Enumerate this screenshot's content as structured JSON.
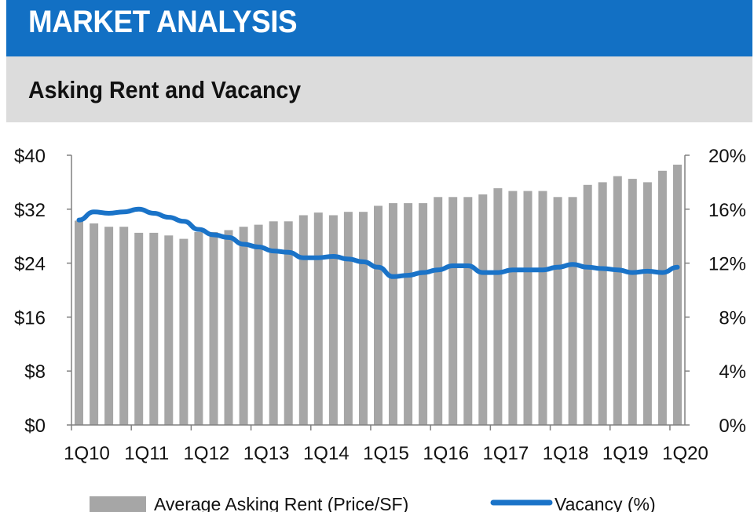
{
  "header": {
    "title": "MARKET ANALYSIS"
  },
  "subheader": {
    "title": "Asking Rent and Vacancy"
  },
  "colors": {
    "header_bg": "#1270c4",
    "subheader_bg": "#dcdcdc",
    "bar": "#a6a6a6",
    "line": "#1a73c8"
  },
  "chart_data": {
    "type": "bar",
    "title": "Asking Rent and Vacancy",
    "categories": [
      "1Q10",
      "2Q10",
      "3Q10",
      "4Q10",
      "1Q11",
      "2Q11",
      "3Q11",
      "4Q11",
      "1Q12",
      "2Q12",
      "3Q12",
      "4Q12",
      "1Q13",
      "2Q13",
      "3Q13",
      "4Q13",
      "1Q14",
      "2Q14",
      "3Q14",
      "4Q14",
      "1Q15",
      "2Q15",
      "3Q15",
      "4Q15",
      "1Q16",
      "2Q16",
      "3Q16",
      "4Q16",
      "1Q17",
      "2Q17",
      "3Q17",
      "4Q17",
      "1Q18",
      "2Q18",
      "3Q18",
      "4Q18",
      "1Q19",
      "2Q19",
      "3Q19",
      "4Q19",
      "1Q20"
    ],
    "x_tick_labels": [
      "1Q10",
      "1Q11",
      "1Q12",
      "1Q13",
      "1Q14",
      "1Q15",
      "1Q16",
      "1Q17",
      "1Q18",
      "1Q19",
      "1Q20"
    ],
    "y_left": {
      "range": [
        0,
        40
      ],
      "ticks": [
        "$0",
        "$8",
        "$16",
        "$24",
        "$32",
        "$40"
      ]
    },
    "y_right": {
      "range": [
        0,
        20
      ],
      "ticks": [
        "0%",
        "4%",
        "8%",
        "12%",
        "16%",
        "20%"
      ]
    },
    "series": [
      {
        "name": "Average Asking Rent (Price/SF)",
        "type": "bar",
        "axis": "left",
        "values": [
          30.3,
          29.9,
          29.4,
          29.4,
          28.5,
          28.5,
          28.1,
          27.6,
          28.6,
          28.6,
          28.9,
          29.4,
          29.7,
          30.2,
          30.2,
          31.1,
          31.5,
          31.1,
          31.6,
          31.6,
          32.5,
          32.9,
          32.9,
          32.9,
          33.8,
          33.8,
          33.8,
          34.2,
          35.1,
          34.7,
          34.7,
          34.7,
          33.8,
          33.8,
          35.6,
          36.0,
          36.9,
          36.5,
          36.0,
          37.7,
          38.6
        ]
      },
      {
        "name": "Vacancy (%)",
        "type": "line",
        "axis": "right",
        "values": [
          15.2,
          15.8,
          15.7,
          15.8,
          16.0,
          15.7,
          15.4,
          15.1,
          14.5,
          14.1,
          13.9,
          13.4,
          13.2,
          12.9,
          12.8,
          12.4,
          12.4,
          12.5,
          12.3,
          12.1,
          11.7,
          11.0,
          11.1,
          11.3,
          11.5,
          11.8,
          11.8,
          11.3,
          11.3,
          11.5,
          11.5,
          11.5,
          11.7,
          11.9,
          11.7,
          11.6,
          11.5,
          11.3,
          11.4,
          11.3,
          11.7
        ]
      }
    ],
    "legend": {
      "position": "bottom"
    },
    "grid": false
  }
}
